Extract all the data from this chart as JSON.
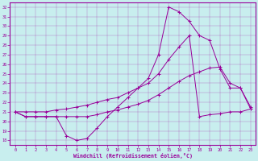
{
  "xlabel": "Windchill (Refroidissement éolien,°C)",
  "background_color": "#c8eeee",
  "line_color": "#990099",
  "xlim_min": -0.5,
  "xlim_max": 23.5,
  "ylim_min": 17.5,
  "ylim_max": 32.5,
  "xticks": [
    0,
    1,
    2,
    3,
    4,
    5,
    6,
    7,
    8,
    9,
    10,
    11,
    12,
    13,
    14,
    15,
    16,
    17,
    18,
    19,
    20,
    21,
    22,
    23
  ],
  "yticks": [
    18,
    19,
    20,
    21,
    22,
    23,
    24,
    25,
    26,
    27,
    28,
    29,
    30,
    31,
    32
  ],
  "series": [
    [
      21.0,
      20.5,
      20.5,
      20.5,
      20.5,
      18.5,
      18.0,
      18.2,
      19.3,
      20.5,
      21.5,
      22.5,
      23.5,
      24.5,
      27.0,
      32.0,
      31.5,
      30.5,
      29.0,
      28.5,
      25.5,
      23.5,
      23.5,
      21.5
    ],
    [
      21.0,
      21.0,
      21.0,
      21.0,
      21.2,
      21.3,
      21.5,
      21.7,
      22.0,
      22.3,
      22.5,
      23.0,
      23.5,
      24.0,
      25.0,
      26.5,
      27.8,
      29.0,
      20.5,
      20.7,
      20.8,
      21.0,
      21.0,
      21.3
    ],
    [
      21.0,
      20.5,
      20.5,
      20.5,
      20.5,
      20.5,
      20.5,
      20.5,
      20.7,
      21.0,
      21.2,
      21.5,
      21.8,
      22.2,
      22.8,
      23.5,
      24.2,
      24.8,
      25.2,
      25.6,
      25.7,
      24.0,
      23.5,
      21.3
    ]
  ]
}
